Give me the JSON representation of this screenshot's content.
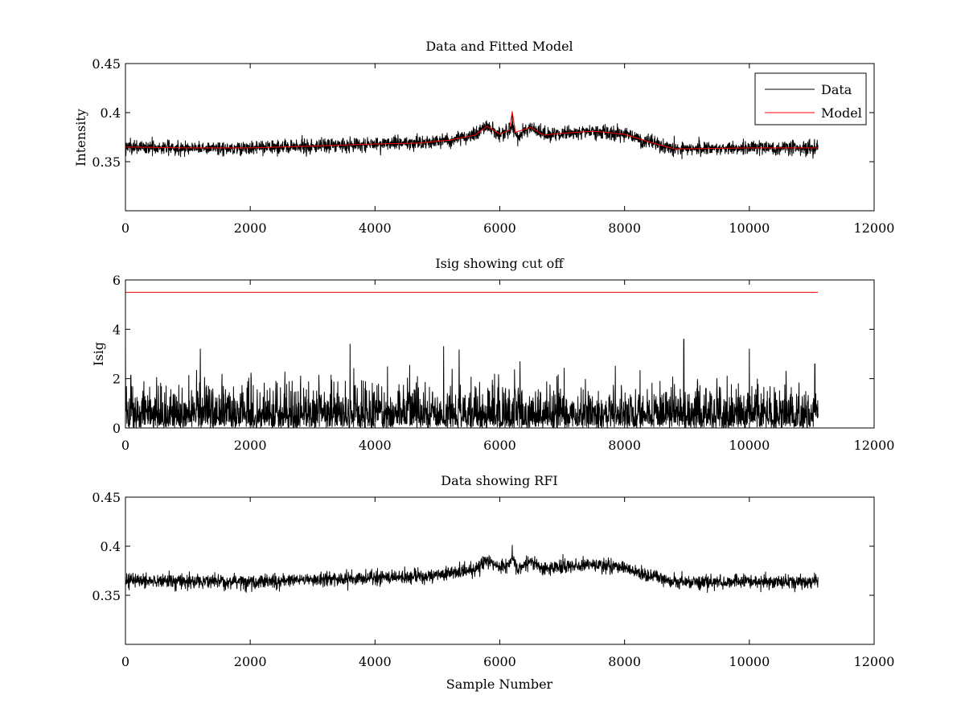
{
  "chart_data": [
    {
      "type": "line",
      "title": "Data and Fitted Model",
      "xlabel": "",
      "ylabel": "Intensity",
      "xlim": [
        0,
        12000
      ],
      "ylim": [
        0.3,
        0.45
      ],
      "xticks": [
        0,
        2000,
        4000,
        6000,
        8000,
        10000,
        12000
      ],
      "yticks": [
        0.35,
        0.4,
        0.45
      ],
      "ytick_labels": [
        "0.35",
        "0.4",
        "0.45"
      ],
      "legend": {
        "placement": "top-right",
        "entries": [
          "Data",
          "Model"
        ]
      },
      "series": [
        {
          "name": "Data",
          "color": "#000000",
          "kind": "noisy",
          "n_samples": 11100,
          "noise": 0.0035,
          "baseline": [
            [
              0,
              0.365
            ],
            [
              1000,
              0.364
            ],
            [
              2000,
              0.364
            ],
            [
              3000,
              0.366
            ],
            [
              4000,
              0.368
            ],
            [
              4700,
              0.369
            ],
            [
              5200,
              0.372
            ],
            [
              5600,
              0.377
            ],
            [
              5800,
              0.386
            ],
            [
              6000,
              0.378
            ],
            [
              6150,
              0.382
            ],
            [
              6200,
              0.388
            ],
            [
              6280,
              0.376
            ],
            [
              6500,
              0.385
            ],
            [
              6700,
              0.377
            ],
            [
              7000,
              0.379
            ],
            [
              7500,
              0.381
            ],
            [
              8000,
              0.378
            ],
            [
              8400,
              0.37
            ],
            [
              8800,
              0.363
            ],
            [
              10000,
              0.364
            ],
            [
              11100,
              0.364
            ]
          ],
          "spikes": [
            [
              6200,
              0.401
            ]
          ]
        },
        {
          "name": "Model",
          "color": "#ff0000",
          "kind": "line",
          "points": [
            [
              0,
              0.365
            ],
            [
              1000,
              0.364
            ],
            [
              2000,
              0.364
            ],
            [
              3000,
              0.366
            ],
            [
              4000,
              0.368
            ],
            [
              4700,
              0.369
            ],
            [
              5200,
              0.372
            ],
            [
              5600,
              0.377
            ],
            [
              5800,
              0.386
            ],
            [
              6000,
              0.378
            ],
            [
              6150,
              0.382
            ],
            [
              6200,
              0.401
            ],
            [
              6250,
              0.38
            ],
            [
              6500,
              0.385
            ],
            [
              6700,
              0.377
            ],
            [
              7000,
              0.379
            ],
            [
              7500,
              0.381
            ],
            [
              8000,
              0.378
            ],
            [
              8400,
              0.37
            ],
            [
              8800,
              0.363
            ],
            [
              10000,
              0.364
            ],
            [
              11100,
              0.364
            ]
          ]
        }
      ]
    },
    {
      "type": "line",
      "title": "Isig showing cut off",
      "xlabel": "",
      "ylabel": "Isig",
      "xlim": [
        0,
        12000
      ],
      "ylim": [
        0,
        6
      ],
      "xticks": [
        0,
        2000,
        4000,
        6000,
        8000,
        10000,
        12000
      ],
      "yticks": [
        0,
        2,
        4,
        6
      ],
      "ytick_labels": [
        "0",
        "2",
        "4",
        "6"
      ],
      "series": [
        {
          "name": "",
          "color": "#000000",
          "kind": "abs-noise",
          "n_samples": 11100,
          "scale": 0.8,
          "spikes": [
            [
              0,
              3.5
            ],
            [
              1200,
              3.2
            ],
            [
              3600,
              3.4
            ],
            [
              5100,
              3.3
            ],
            [
              8950,
              3.6
            ],
            [
              10000,
              3.2
            ],
            [
              11050,
              2.6
            ]
          ]
        },
        {
          "name": "",
          "color": "#ff0000",
          "kind": "line",
          "points": [
            [
              0,
              5.5
            ],
            [
              11100,
              5.5
            ]
          ]
        }
      ]
    },
    {
      "type": "line",
      "title": "Data showing RFI",
      "xlabel": "Sample Number",
      "ylabel": "",
      "xlim": [
        0,
        12000
      ],
      "ylim": [
        0.3,
        0.45
      ],
      "xticks": [
        0,
        2000,
        4000,
        6000,
        8000,
        10000,
        12000
      ],
      "yticks": [
        0.35,
        0.4,
        0.45
      ],
      "ytick_labels": [
        "0.35",
        "0.4",
        "0.45"
      ],
      "series": [
        {
          "name": "",
          "color": "#000000",
          "kind": "noisy",
          "n_samples": 11100,
          "noise": 0.0035,
          "baseline": [
            [
              0,
              0.365
            ],
            [
              1000,
              0.364
            ],
            [
              2000,
              0.364
            ],
            [
              3000,
              0.366
            ],
            [
              4000,
              0.368
            ],
            [
              4700,
              0.369
            ],
            [
              5200,
              0.372
            ],
            [
              5600,
              0.377
            ],
            [
              5800,
              0.386
            ],
            [
              6000,
              0.378
            ],
            [
              6150,
              0.382
            ],
            [
              6200,
              0.388
            ],
            [
              6280,
              0.376
            ],
            [
              6500,
              0.385
            ],
            [
              6700,
              0.377
            ],
            [
              7000,
              0.379
            ],
            [
              7500,
              0.381
            ],
            [
              8000,
              0.378
            ],
            [
              8400,
              0.37
            ],
            [
              8800,
              0.363
            ],
            [
              10000,
              0.364
            ],
            [
              11100,
              0.364
            ]
          ],
          "spikes": [
            [
              6200,
              0.401
            ]
          ]
        }
      ]
    }
  ]
}
